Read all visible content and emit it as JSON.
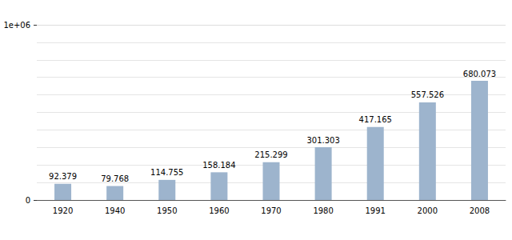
{
  "chart_data": {
    "type": "bar",
    "categories": [
      "1920",
      "1940",
      "1950",
      "1960",
      "1970",
      "1980",
      "1991",
      "2000",
      "2008"
    ],
    "values": [
      92379,
      79768,
      114755,
      158184,
      215299,
      301303,
      417165,
      557526,
      680073
    ],
    "value_labels": [
      "92.379",
      "79.768",
      "114.755",
      "158.184",
      "215.299",
      "301.303",
      "417.165",
      "557.526",
      "680.073"
    ],
    "color": "#9db4cd",
    "ylim": [
      0,
      1000000
    ],
    "yticks": [
      0,
      {
        "value": 1000000,
        "label": "1e+06"
      }
    ],
    "grid": true,
    "data_labels": true
  }
}
